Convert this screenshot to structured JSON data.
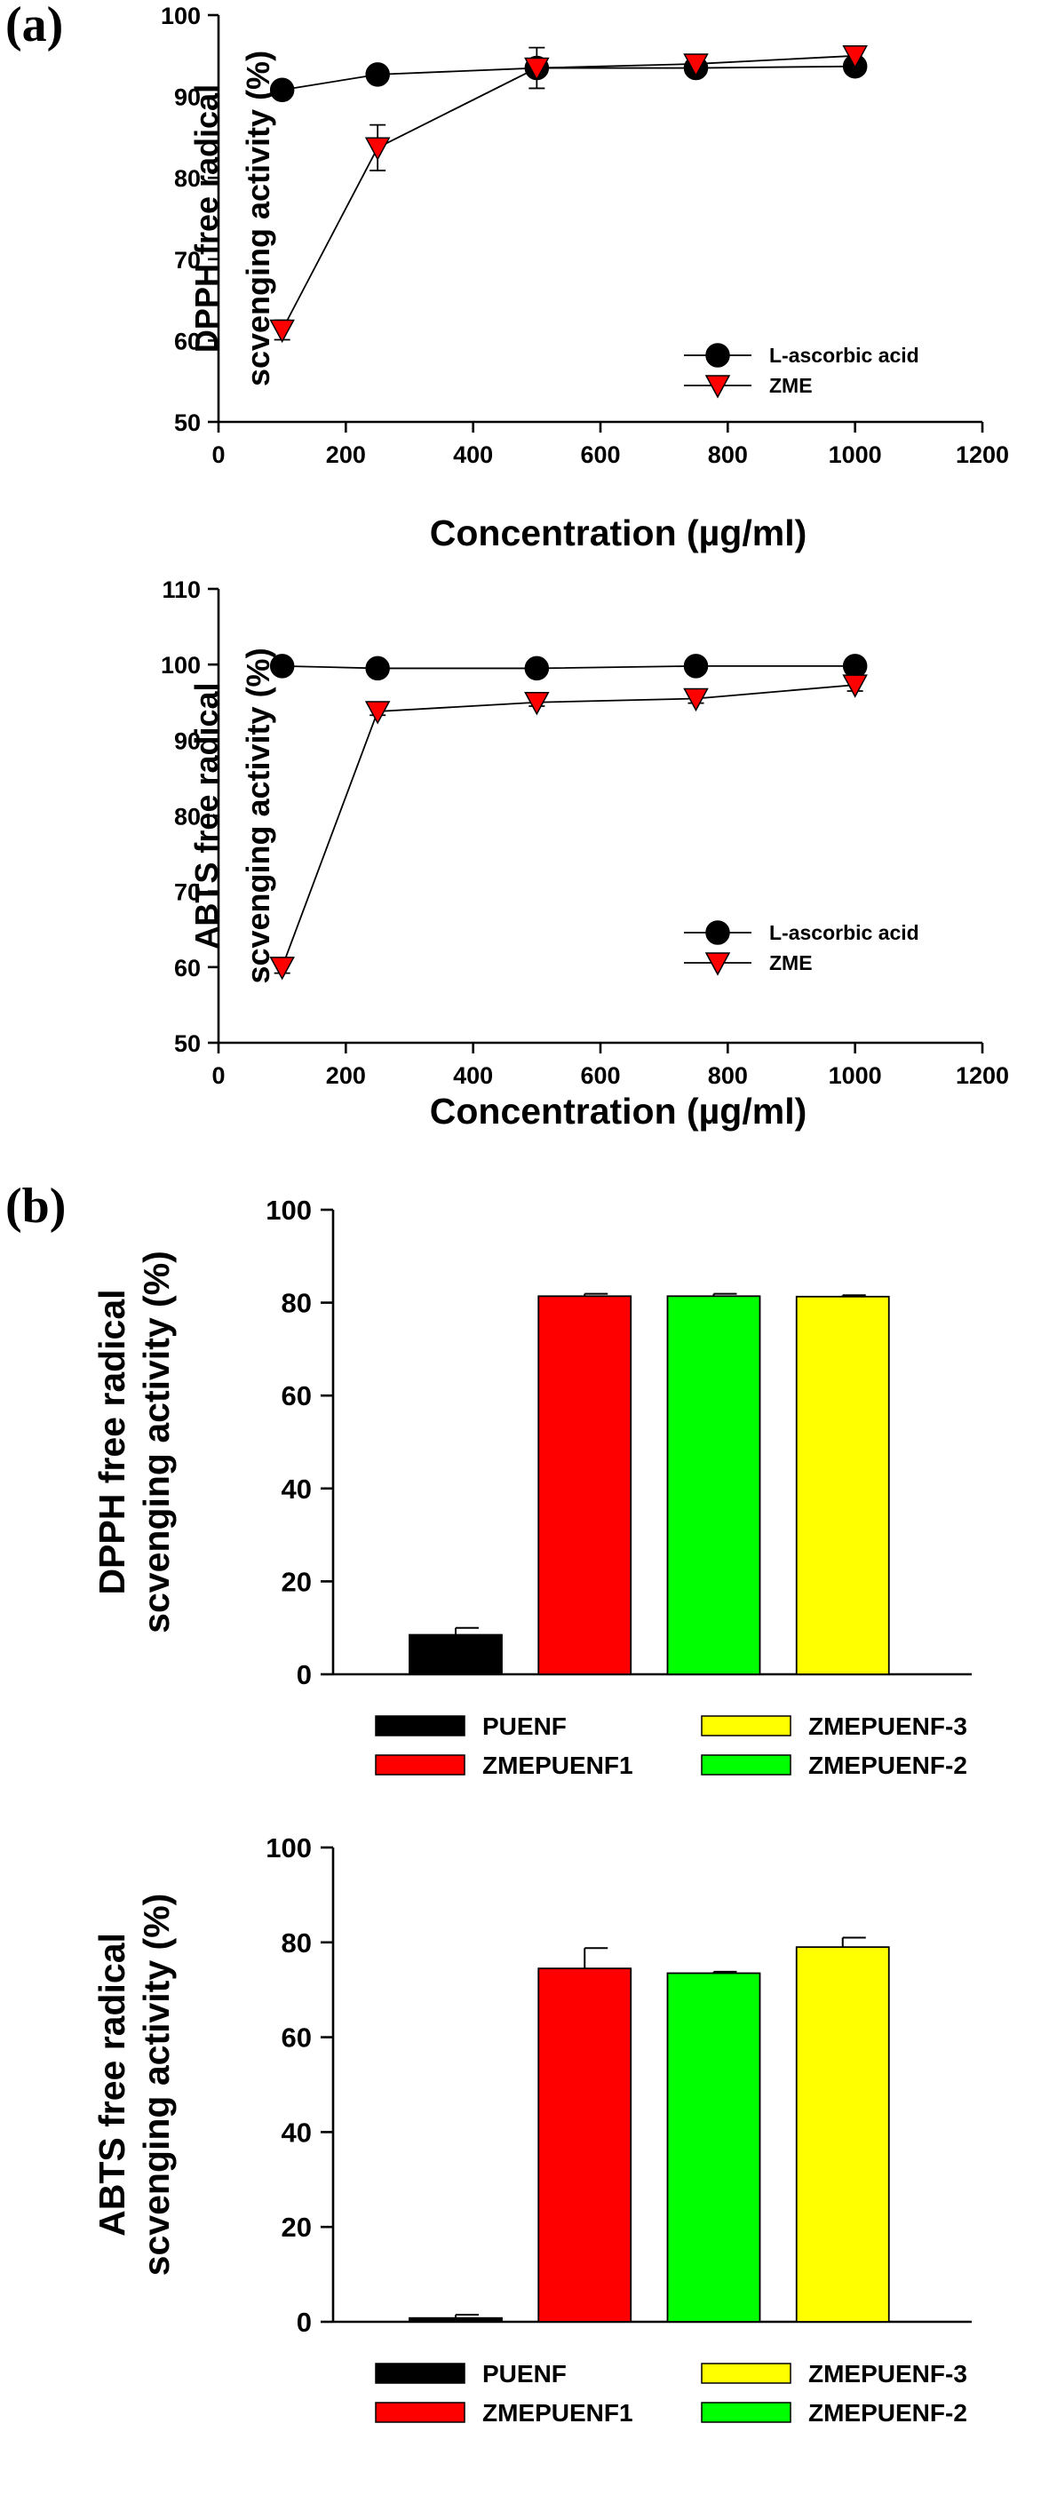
{
  "panels": {
    "a": "(a)",
    "b": "(b)"
  },
  "chart_data": [
    {
      "type": "line",
      "xlabel": "Concentration (µg/ml)",
      "ylabel": [
        "DPPH free radical",
        "scvenging activity (%)"
      ],
      "xlim": [
        0,
        1200
      ],
      "ylim": [
        50,
        100
      ],
      "xticks": [
        "0",
        "200",
        "400",
        "600",
        "800",
        "1000",
        "1200"
      ],
      "yticks": [
        "50",
        "60",
        "70",
        "80",
        "90",
        "100"
      ],
      "x": [
        100,
        250,
        500,
        750,
        1000
      ],
      "legend_position": "bottom-right",
      "series": [
        {
          "name": "L-ascorbic acid",
          "marker": "circle",
          "color": "#000000",
          "values": [
            90.8,
            92.7,
            93.5,
            93.5,
            93.7
          ],
          "errors": [
            0.4,
            0.4,
            0.4,
            0.4,
            0.4
          ]
        },
        {
          "name": "ZME",
          "marker": "triangle-down",
          "color": "#ff0000",
          "values": [
            61.3,
            83.7,
            93.5,
            94.0,
            95.0
          ],
          "errors": [
            1.2,
            2.8,
            2.5,
            0.5,
            0.6
          ]
        }
      ]
    },
    {
      "type": "line",
      "xlabel": "Concentration (µg/ml)",
      "ylabel": [
        "ABTS free radical",
        "scvenging activity (%)"
      ],
      "xlim": [
        0,
        1200
      ],
      "ylim": [
        50,
        110
      ],
      "xticks": [
        "0",
        "200",
        "400",
        "600",
        "800",
        "1000",
        "1200"
      ],
      "yticks": [
        "50",
        "60",
        "70",
        "80",
        "90",
        "100",
        "110"
      ],
      "x": [
        100,
        250,
        500,
        750,
        1000
      ],
      "legend_position": "bottom-right",
      "series": [
        {
          "name": "L-ascorbic acid",
          "marker": "circle",
          "color": "#000000",
          "values": [
            99.8,
            99.5,
            99.5,
            99.8,
            99.8
          ],
          "errors": [
            0.3,
            0.3,
            0.3,
            0.3,
            0.3
          ]
        },
        {
          "name": "ZME",
          "marker": "triangle-down",
          "color": "#ff0000",
          "values": [
            60.0,
            93.8,
            95.0,
            95.5,
            97.3
          ],
          "errors": [
            0.8,
            0.5,
            0.5,
            0.6,
            0.8
          ]
        }
      ]
    },
    {
      "type": "bar",
      "ylabel": [
        "DPPH free radical",
        "scvenging activity (%)"
      ],
      "ylim": [
        0,
        100
      ],
      "yticks": [
        "0",
        "20",
        "40",
        "60",
        "80",
        "100"
      ],
      "categories": [
        "PUENF",
        "ZMEPUENF1",
        "ZMEPUENF-2",
        "ZMEPUENF-3"
      ],
      "colors": [
        "#000000",
        "#ff0000",
        "#00ff00",
        "#ffff00"
      ],
      "values": [
        8.5,
        81.4,
        81.4,
        81.3
      ],
      "errors": [
        1.5,
        0.5,
        0.5,
        0.3
      ],
      "legend_position": "bottom",
      "legend_order": [
        0,
        3,
        1,
        2
      ]
    },
    {
      "type": "bar",
      "ylabel": [
        "ABTS free radical",
        "scvenging activity (%)"
      ],
      "ylim": [
        0,
        100
      ],
      "yticks": [
        "0",
        "20",
        "40",
        "60",
        "80",
        "100"
      ],
      "categories": [
        "PUENF",
        "ZMEPUENF1",
        "ZMEPUENF-2",
        "ZMEPUENF-3"
      ],
      "colors": [
        "#000000",
        "#ff0000",
        "#00ff00",
        "#ffff00"
      ],
      "values": [
        0.8,
        74.5,
        73.5,
        79.0
      ],
      "errors": [
        0.7,
        4.3,
        0.3,
        2.0
      ],
      "legend_position": "bottom",
      "legend_order": [
        0,
        3,
        1,
        2
      ]
    }
  ]
}
